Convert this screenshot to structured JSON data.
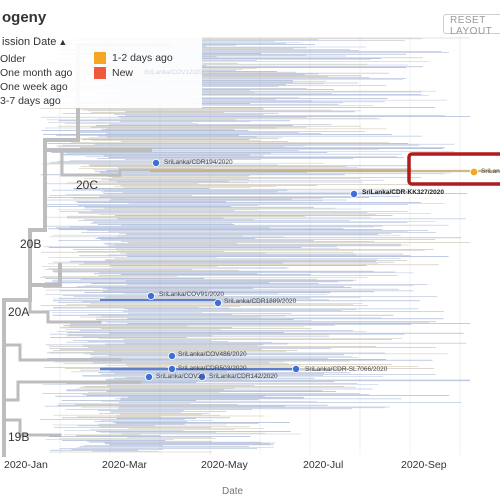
{
  "header": {
    "title": "ogeny",
    "reset_label": "RESET LAYOUT"
  },
  "legend": {
    "title": "ission Date",
    "items": [
      {
        "label": "Older",
        "color": "#f3f3f3"
      },
      {
        "label": "One month ago",
        "color": "#f3f3f3"
      },
      {
        "label": "One week ago",
        "color": "#f3f3f3"
      },
      {
        "label": "3-7 days ago",
        "color": "#f3f3f3"
      },
      {
        "label": "1-2 days ago",
        "color": "#f5a623"
      },
      {
        "label": "New",
        "color": "#f05a3c"
      }
    ]
  },
  "axis": {
    "x_title": "Date",
    "ticks": [
      "2020-Jan",
      "2020-Mar",
      "2020-May",
      "2020-Jul",
      "2020-Sep"
    ]
  },
  "clades": [
    "20C",
    "20B",
    "20A",
    "19B"
  ],
  "nodes": [
    {
      "label": "SriLanka/COV12/2020"
    },
    {
      "label": "SriLanka/CDR194/2020"
    },
    {
      "label": "SriLanka/CDR-KK327/2020"
    },
    {
      "label": "SriLanka/COV91/2020"
    },
    {
      "label": "SriLanka/CDR1889/2020"
    },
    {
      "label": "SriLanka/COV486/2020"
    },
    {
      "label": "SriLanka/CDR503/2020"
    },
    {
      "label": "SriLanka/CDR-SL7066/2020"
    },
    {
      "label": "SriLanka/COV30"
    },
    {
      "label": "SriLanka/CDR142/2020"
    },
    {
      "label": "SriLan"
    }
  ],
  "colors": {
    "backbone": "#bdbdbd",
    "tips": "#7b93c4",
    "tips_recent": "#b9ae92",
    "node": "#3d6fd9",
    "highlight_node": "#f5a623",
    "highlight_box": "#b01c1c",
    "grid": "#e6e6e6"
  }
}
